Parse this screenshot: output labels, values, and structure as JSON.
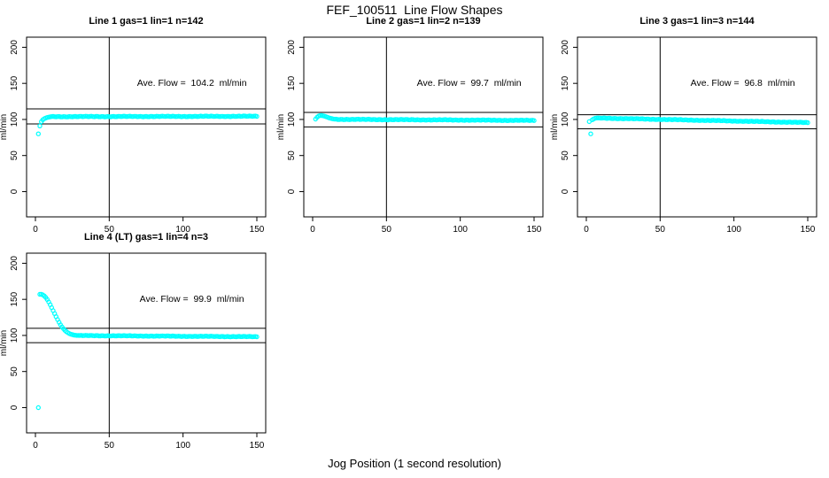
{
  "page": {
    "title": "FEF_100511  Line Flow Shapes",
    "xlabel": "Jog Position (1 second resolution)",
    "background": "#ffffff",
    "point_color": "#00ffff",
    "line_color": "#000000"
  },
  "chart_data": [
    {
      "type": "scatter",
      "title": "Line 1 gas=1 lin=1 n=142",
      "n": 142,
      "annotation": "Ave. Flow =  104.2  ml/min",
      "ave_flow_ml_min": 104.2,
      "ylabel": "ml/min",
      "xlim": [
        -6,
        156
      ],
      "ylim": [
        -35,
        214
      ],
      "xticks": [
        0,
        50,
        100,
        150
      ],
      "yticks": [
        0,
        50,
        100,
        150,
        200
      ],
      "ref_hlines": [
        114.6,
        93.8
      ],
      "ref_vline": 50,
      "marker": "open-circle",
      "points_head": [
        [
          2,
          80
        ],
        [
          3,
          91
        ],
        [
          4,
          97
        ],
        [
          5,
          99.5
        ],
        [
          6,
          101
        ],
        [
          7,
          102
        ],
        [
          8,
          102.7
        ],
        [
          9,
          103.2
        ],
        [
          10,
          103.6
        ]
      ],
      "points_band": {
        "x_from": 11,
        "x_to": 150,
        "y_from": 103.9,
        "y_to": 104.4,
        "noise": 0.5
      }
    },
    {
      "type": "scatter",
      "title": "Line 2 gas=1 lin=2 n=139",
      "n": 139,
      "annotation": "Ave. Flow =  99.7  ml/min",
      "ave_flow_ml_min": 99.7,
      "ylabel": "ml/min",
      "xlim": [
        -6,
        156
      ],
      "ylim": [
        -35,
        214
      ],
      "xticks": [
        0,
        50,
        100,
        150
      ],
      "yticks": [
        0,
        50,
        100,
        150,
        200
      ],
      "ref_hlines": [
        109.7,
        89.7
      ],
      "ref_vline": 50,
      "marker": "open-circle",
      "points_head": [
        [
          2,
          100.5
        ],
        [
          3,
          103
        ],
        [
          4,
          104.7
        ],
        [
          5,
          105.3
        ],
        [
          6,
          105.4
        ],
        [
          7,
          105.1
        ],
        [
          8,
          104.6
        ],
        [
          9,
          103.9
        ],
        [
          10,
          103.1
        ],
        [
          11,
          102.3
        ],
        [
          12,
          101.6
        ],
        [
          13,
          101.1
        ],
        [
          14,
          100.7
        ],
        [
          15,
          100.4
        ]
      ],
      "points_band": {
        "x_from": 16,
        "x_to": 150,
        "y_from": 100.2,
        "y_to": 98.6,
        "noise": 0.5
      }
    },
    {
      "type": "scatter",
      "title": "Line 3 gas=1 lin=3 n=144",
      "n": 144,
      "annotation": "Ave. Flow =  96.8  ml/min",
      "ave_flow_ml_min": 96.8,
      "ylabel": "ml/min",
      "xlim": [
        -6,
        156
      ],
      "ylim": [
        -35,
        214
      ],
      "xticks": [
        0,
        50,
        100,
        150
      ],
      "yticks": [
        0,
        50,
        100,
        150,
        200
      ],
      "ref_hlines": [
        106.5,
        87.1
      ],
      "ref_vline": 50,
      "marker": "open-circle",
      "points_head": [
        [
          2,
          97
        ],
        [
          3,
          80
        ],
        [
          4,
          99.5
        ],
        [
          5,
          100.8
        ],
        [
          6,
          101.6
        ],
        [
          7,
          102
        ],
        [
          8,
          102.1
        ],
        [
          9,
          102
        ]
      ],
      "points_band": {
        "x_from": 10,
        "x_to": 150,
        "y_from": 101.9,
        "y_to": 95.6,
        "noise": 0.5
      }
    },
    {
      "type": "scatter",
      "title": "Line 4 (LT) gas=1 lin=4 n=3",
      "n": 3,
      "annotation": "Ave. Flow =  99.9  ml/min",
      "ave_flow_ml_min": 99.9,
      "ylabel": "ml/min",
      "xlim": [
        -6,
        156
      ],
      "ylim": [
        -35,
        214
      ],
      "xticks": [
        0,
        50,
        100,
        150
      ],
      "yticks": [
        0,
        50,
        100,
        150,
        200
      ],
      "ref_hlines": [
        109.9,
        89.9
      ],
      "ref_vline": 50,
      "marker": "open-circle",
      "points_head": [
        [
          2,
          0
        ],
        [
          3,
          157
        ],
        [
          4,
          157
        ],
        [
          5,
          156.2
        ],
        [
          6,
          154.8
        ],
        [
          7,
          152.6
        ],
        [
          8,
          149.8
        ],
        [
          9,
          146.4
        ],
        [
          10,
          142.6
        ],
        [
          11,
          138.6
        ],
        [
          12,
          134.4
        ],
        [
          13,
          130.2
        ],
        [
          14,
          126
        ],
        [
          15,
          122
        ],
        [
          16,
          118.2
        ],
        [
          17,
          114.8
        ],
        [
          18,
          111.8
        ],
        [
          19,
          109.2
        ],
        [
          20,
          107
        ],
        [
          21,
          105.2
        ],
        [
          22,
          103.7
        ],
        [
          23,
          102.6
        ],
        [
          24,
          101.7
        ],
        [
          25,
          101.1
        ],
        [
          26,
          100.6
        ],
        [
          27,
          100.3
        ],
        [
          28,
          100.1
        ],
        [
          29,
          100
        ],
        [
          30,
          99.9
        ]
      ],
      "points_band": {
        "x_from": 31,
        "x_to": 150,
        "y_from": 99.8,
        "y_to": 98.2,
        "noise": 0.45
      }
    }
  ]
}
